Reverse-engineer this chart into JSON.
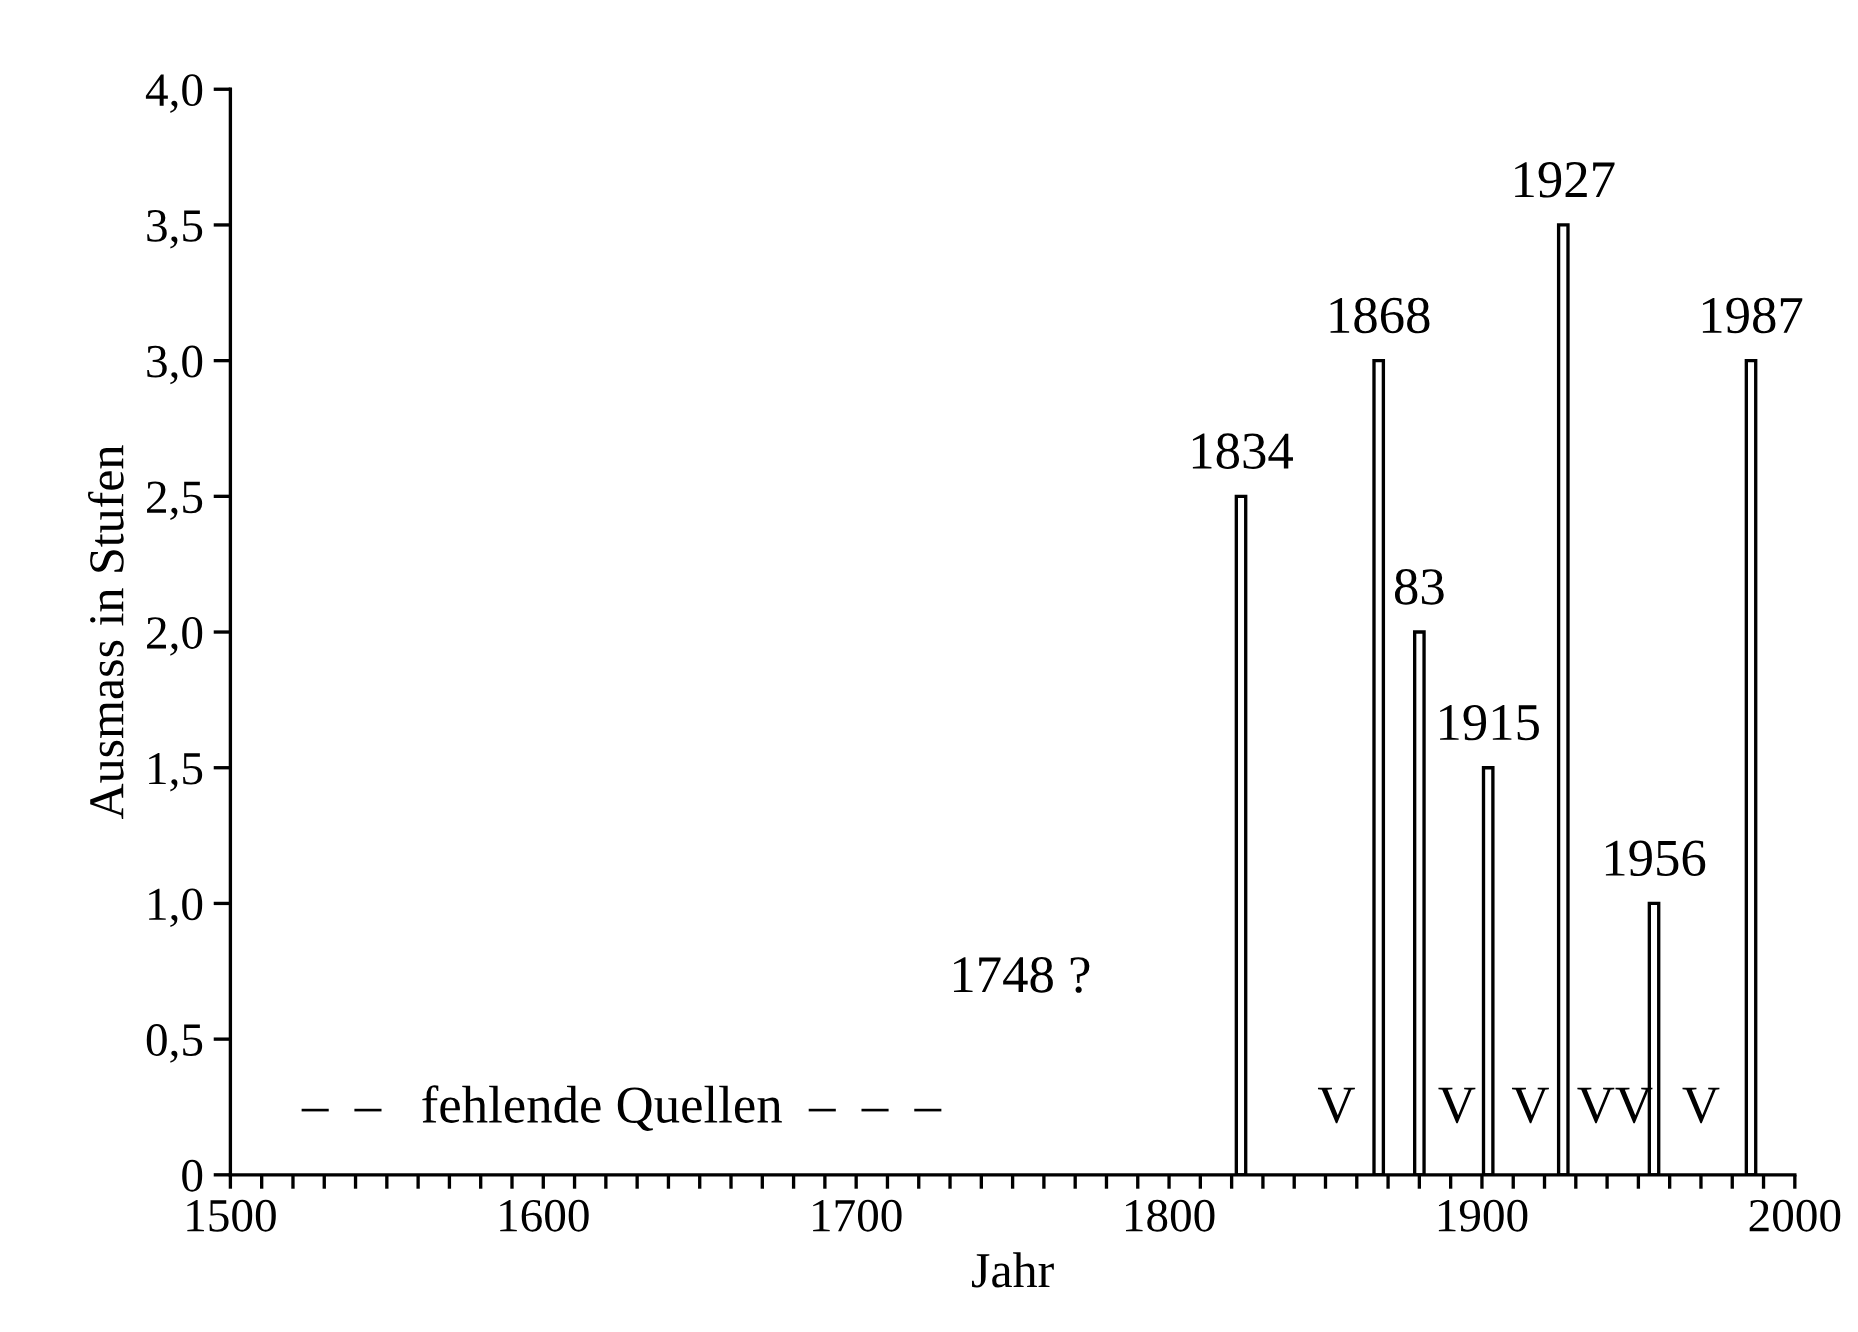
{
  "chart_data": {
    "type": "bar",
    "xlabel": "Jahr",
    "ylabel": "Ausmass in Stufen",
    "x": [
      1823,
      1867,
      1880,
      1902,
      1926,
      1955,
      1986
    ],
    "values": [
      2.5,
      3.0,
      2.0,
      1.5,
      3.5,
      1.0,
      3.0
    ],
    "color": "#ffffff",
    "xlim": [
      1500,
      2000
    ],
    "ylim": [
      0,
      4
    ],
    "xticks": [
      1500,
      {
        "value": 1510,
        "label": null
      },
      {
        "value": 1520,
        "label": null
      },
      {
        "value": 1530,
        "label": null
      },
      {
        "value": 1540,
        "label": null
      },
      {
        "value": 1550,
        "label": null
      },
      {
        "value": 1560,
        "label": null
      },
      {
        "value": 1570,
        "label": null
      },
      {
        "value": 1580,
        "label": null
      },
      {
        "value": 1590,
        "label": null
      },
      1600,
      {
        "value": 1610,
        "label": null
      },
      {
        "value": 1620,
        "label": null
      },
      {
        "value": 1630,
        "label": null
      },
      {
        "value": 1640,
        "label": null
      },
      {
        "value": 1650,
        "label": null
      },
      {
        "value": 1660,
        "label": null
      },
      {
        "value": 1670,
        "label": null
      },
      {
        "value": 1680,
        "label": null
      },
      {
        "value": 1690,
        "label": null
      },
      1700,
      {
        "value": 1710,
        "label": null
      },
      {
        "value": 1720,
        "label": null
      },
      {
        "value": 1730,
        "label": null
      },
      {
        "value": 1740,
        "label": null
      },
      {
        "value": 1750,
        "label": null
      },
      {
        "value": 1760,
        "label": null
      },
      {
        "value": 1770,
        "label": null
      },
      {
        "value": 1780,
        "label": null
      },
      {
        "value": 1790,
        "label": null
      },
      1800,
      {
        "value": 1810,
        "label": null
      },
      {
        "value": 1820,
        "label": null
      },
      {
        "value": 1830,
        "label": null
      },
      {
        "value": 1840,
        "label": null
      },
      {
        "value": 1850,
        "label": null
      },
      {
        "value": 1860,
        "label": null
      },
      {
        "value": 1870,
        "label": null
      },
      {
        "value": 1880,
        "label": null
      },
      {
        "value": 1890,
        "label": null
      },
      1900,
      {
        "value": 1910,
        "label": null
      },
      {
        "value": 1920,
        "label": null
      },
      {
        "value": 1930,
        "label": null
      },
      {
        "value": 1940,
        "label": null
      },
      {
        "value": 1950,
        "label": null
      },
      {
        "value": 1960,
        "label": null
      },
      {
        "value": 1970,
        "label": null
      },
      {
        "value": 1980,
        "label": null
      },
      {
        "value": 1990,
        "label": null
      },
      2000
    ],
    "yticks": [
      0,
      {
        "value": 0.5,
        "label": "0,5"
      },
      {
        "value": 1,
        "label": "1,0"
      },
      {
        "value": 1.5,
        "label": "1,5"
      },
      {
        "value": 2,
        "label": "2,0"
      },
      {
        "value": 2.5,
        "label": "2,5"
      },
      {
        "value": 3,
        "label": "3,0"
      },
      {
        "value": 3.5,
        "label": "3,5"
      },
      {
        "value": 4,
        "label": "4,0"
      }
    ],
    "grid": false,
    "legend": false,
    "annotations": [
      {
        "text": "1834",
        "x": 1823,
        "y": 2.5
      },
      {
        "text": "1868",
        "x": 1867,
        "y": 3.0
      },
      {
        "text": "83",
        "x": 1880,
        "y": 2.0
      },
      {
        "text": "1915",
        "x": 1902,
        "y": 1.5
      },
      {
        "text": "1927",
        "x": 1926,
        "y": 3.5
      },
      {
        "text": "1956",
        "x": 1955,
        "y": 1.0
      },
      {
        "text": "1987",
        "x": 1986,
        "y": 3.0
      },
      "1748 ?",
      "–  –   fehlende Quellen  –  –  –",
      "V",
      "V",
      "V",
      "VV",
      "V"
    ]
  }
}
